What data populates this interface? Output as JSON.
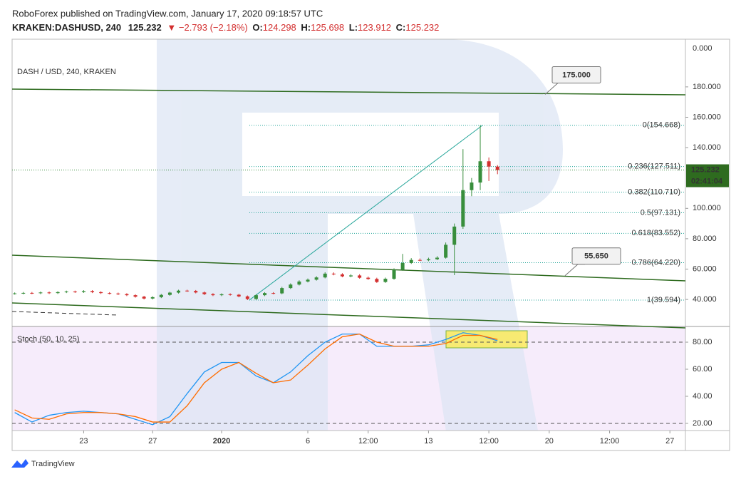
{
  "header": {
    "publisher": "RoboForex published on TradingView.com, January 17, 2020 09:18:57 UTC",
    "symbol": "KRAKEN:DASHUSD, 240",
    "last": "125.232",
    "change": "▼ −2.793 (−2.18%)",
    "o_key": "O:",
    "o": "124.298",
    "h_key": "H:",
    "h": "125.698",
    "l_key": "L:",
    "l": "123.912",
    "c_key": "C:",
    "c": "125.232"
  },
  "chart_data": [
    {
      "type": "candlestick",
      "title": "DASH / USD, 240, KRAKEN",
      "top_axis_label": "0.000",
      "countdown": "02:41:04",
      "up_color": "#388e3c",
      "down_color": "#d32f2f",
      "x": [
        -12,
        -11.5,
        -11,
        -10.5,
        -10,
        -9.5,
        -9,
        -8.5,
        -8,
        -7.5,
        -7,
        -6.5,
        -6,
        -5.5,
        -5,
        -4.5,
        -4,
        -3.5,
        -3,
        -2.5,
        -2,
        -1.5,
        -1,
        -0.5,
        0,
        0.5,
        1,
        1.5,
        2,
        2.5,
        3,
        3.5,
        4,
        4.5,
        5,
        5.5,
        6,
        6.5,
        7,
        7.5,
        8,
        8.5,
        9,
        9.5,
        10,
        10.5,
        11,
        11.5,
        12,
        12.5,
        13,
        13.5,
        14,
        14.5,
        15,
        15.5,
        16
      ],
      "open": [
        43.8,
        44.0,
        44.3,
        44.1,
        44.6,
        44.2,
        44.8,
        45.2,
        44.9,
        45.5,
        44.8,
        44.2,
        43.9,
        43.5,
        42.8,
        41.8,
        40.6,
        41.5,
        43.0,
        44.5,
        45.8,
        45.6,
        44.6,
        43.5,
        42.8,
        43.4,
        43.1,
        42.0,
        40.3,
        42.8,
        44.2,
        44.0,
        47.5,
        49.8,
        51.8,
        53.0,
        54.5,
        57.0,
        56.5,
        55.2,
        55.8,
        54.3,
        53.5,
        51.5,
        53.6,
        59.5,
        64.0,
        66.0,
        65.8,
        66.5,
        67.5,
        76.0,
        88.0,
        112.0,
        117.0,
        131.0,
        127.5
      ],
      "high": [
        44.6,
        44.9,
        44.9,
        45.2,
        45.2,
        45.4,
        45.8,
        45.8,
        46.1,
        46.1,
        45.4,
        44.8,
        44.5,
        44.1,
        43.4,
        42.4,
        42.1,
        43.6,
        45.1,
        46.4,
        46.4,
        46.2,
        45.2,
        44.1,
        44.0,
        44.0,
        43.7,
        42.6,
        43.4,
        44.8,
        44.8,
        48.3,
        50.6,
        52.6,
        53.8,
        55.3,
        57.9,
        57.8,
        57.3,
        56.6,
        56.6,
        55.1,
        54.3,
        54.4,
        60.5,
        70.0,
        67.2,
        67.0,
        67.5,
        68.5,
        77.5,
        90.0,
        139.0,
        120.0,
        154.668,
        133.5,
        128.5
      ],
      "low": [
        43.2,
        43.4,
        43.5,
        43.5,
        43.6,
        43.6,
        44.2,
        44.3,
        44.3,
        44.2,
        43.6,
        43.3,
        42.9,
        42.2,
        41.2,
        40.0,
        40.0,
        40.9,
        42.4,
        43.9,
        45.0,
        44.0,
        42.9,
        42.2,
        42.2,
        42.5,
        41.4,
        39.594,
        39.8,
        42.2,
        43.4,
        43.4,
        46.9,
        49.2,
        51.2,
        52.4,
        53.9,
        55.9,
        54.6,
        54.6,
        53.7,
        52.9,
        50.9,
        50.9,
        53.0,
        58.9,
        63.4,
        65.2,
        65.2,
        65.9,
        66.9,
        56.0,
        86.5,
        108.0,
        112.0,
        118.0,
        122.5
      ],
      "close": [
        44.0,
        44.3,
        44.1,
        44.6,
        44.2,
        44.8,
        45.2,
        44.9,
        45.5,
        44.8,
        44.2,
        43.9,
        43.5,
        42.8,
        41.8,
        40.6,
        41.5,
        43.0,
        44.5,
        45.8,
        45.6,
        44.6,
        43.5,
        42.8,
        43.4,
        43.1,
        42.0,
        40.3,
        42.8,
        44.2,
        44.0,
        47.5,
        49.8,
        51.8,
        53.0,
        54.5,
        57.0,
        56.5,
        55.2,
        55.8,
        54.3,
        53.5,
        51.5,
        53.6,
        59.5,
        64.0,
        66.0,
        65.8,
        66.5,
        67.5,
        76.0,
        88.0,
        112.0,
        117.0,
        131.0,
        127.5,
        125.232
      ],
      "xlim": [
        -12.15,
        26.9
      ],
      "xticks": [
        {
          "value": -8,
          "label": "23"
        },
        {
          "value": -4,
          "label": "27"
        },
        {
          "value": 0,
          "label": "2020"
        },
        {
          "value": 5,
          "label": "6"
        },
        {
          "value": 8.5,
          "label": "12:00"
        },
        {
          "value": 12,
          "label": "13"
        },
        {
          "value": 15.5,
          "label": "12:00"
        },
        {
          "value": 19,
          "label": "20"
        },
        {
          "value": 22.5,
          "label": "12:00"
        },
        {
          "value": 26,
          "label": "27"
        }
      ],
      "ylim": [
        22.2,
        211.4
      ],
      "yticks": [
        {
          "value": 180,
          "label": "180.000"
        },
        {
          "value": 160,
          "label": "160.000"
        },
        {
          "value": 140,
          "label": "140.000"
        },
        {
          "value": 100,
          "label": "100.000"
        },
        {
          "value": 80,
          "label": "80.000"
        },
        {
          "value": 60,
          "label": "60.000"
        },
        {
          "value": 40,
          "label": "40.000"
        }
      ],
      "fib": {
        "color": "#26a69a",
        "levels": [
          {
            "value": 154.668,
            "label": "0(154.668)"
          },
          {
            "value": 127.511,
            "label": "0.236(127.511)"
          },
          {
            "value": 110.71,
            "label": "0.382(110.710)"
          },
          {
            "value": 97.131,
            "label": "0.5(97.131)"
          },
          {
            "value": 83.552,
            "label": "0.618(83.552)"
          },
          {
            "value": 64.22,
            "label": "0.786(64.220)"
          },
          {
            "value": 39.594,
            "label": "1(39.594)"
          }
        ]
      },
      "callouts": [
        {
          "value": 175,
          "label": "175.000",
          "color": "#2e7d32"
        },
        {
          "value": 55.65,
          "label": "55.650",
          "color": "#c62828"
        }
      ]
    },
    {
      "type": "line",
      "title": "Stoch (50, 10, 25)",
      "x": [
        -12,
        -11,
        -10,
        -9,
        -8,
        -7,
        -6,
        -5,
        -4,
        -3,
        -2,
        -1,
        0,
        1,
        2,
        3,
        4,
        5,
        6,
        7,
        8,
        9,
        10,
        11,
        12,
        13,
        14,
        15,
        16
      ],
      "series": [
        {
          "color": "#2196f3",
          "values": [
            28,
            21,
            26,
            28,
            29,
            28,
            27,
            23,
            19,
            25,
            42,
            58,
            65,
            65,
            55,
            50,
            58,
            70,
            80,
            86,
            86,
            77,
            77,
            77,
            78,
            82,
            87,
            85,
            81
          ]
        },
        {
          "color": "#ff6d00",
          "values": [
            30,
            24,
            23,
            27,
            28,
            28,
            27,
            25,
            21,
            21,
            33,
            50,
            60,
            65,
            57,
            50,
            52,
            63,
            75,
            84,
            86,
            80,
            77,
            77,
            77,
            79,
            85,
            85,
            82
          ]
        }
      ],
      "xlim": [
        -12.15,
        26.9
      ],
      "ylim": [
        14.7,
        91.6
      ],
      "yticks": [
        {
          "value": 80,
          "label": "80.00"
        },
        {
          "value": 60,
          "label": "60.00"
        },
        {
          "value": 40,
          "label": "40.00"
        },
        {
          "value": 20,
          "label": "20.00"
        }
      ],
      "band_lines": [
        80,
        20
      ]
    }
  ],
  "footer": {
    "brand": "TradingView"
  }
}
